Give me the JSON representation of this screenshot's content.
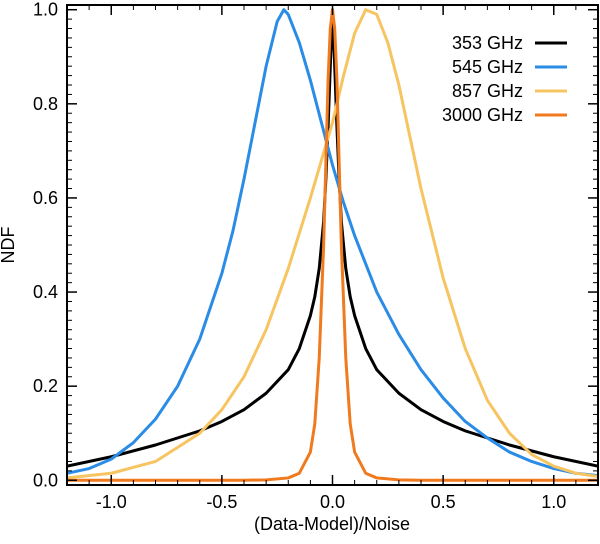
{
  "chart_data": {
    "type": "line",
    "title": "",
    "xlabel": "(Data-Model)/Noise",
    "ylabel": "NDF",
    "xlim": [
      -1.2,
      1.2
    ],
    "ylim": [
      -0.01,
      1.01
    ],
    "grid": false,
    "legend_position": "top-right",
    "x_ticks": [
      -1.0,
      -0.5,
      0.0,
      0.5,
      1.0
    ],
    "x_tick_labels": [
      "-1.0",
      "-0.5",
      "0.0",
      "0.5",
      "1.0"
    ],
    "y_ticks": [
      0.0,
      0.2,
      0.4,
      0.6,
      0.8,
      1.0
    ],
    "y_tick_labels": [
      "0.0",
      "0.2",
      "0.4",
      "0.6",
      "0.8",
      "1.0"
    ],
    "series": [
      {
        "name": "353 GHz",
        "color": "#000000",
        "x": [
          -1.2,
          -1.0,
          -0.8,
          -0.6,
          -0.5,
          -0.4,
          -0.3,
          -0.2,
          -0.15,
          -0.1,
          -0.08,
          -0.06,
          -0.04,
          -0.03,
          -0.02,
          -0.01,
          0.0,
          0.01,
          0.02,
          0.03,
          0.04,
          0.06,
          0.08,
          0.1,
          0.15,
          0.2,
          0.3,
          0.4,
          0.5,
          0.6,
          0.8,
          1.0,
          1.2
        ],
        "y": [
          0.03,
          0.05,
          0.075,
          0.105,
          0.125,
          0.15,
          0.185,
          0.235,
          0.28,
          0.35,
          0.39,
          0.45,
          0.55,
          0.64,
          0.75,
          0.88,
          1.0,
          0.88,
          0.75,
          0.64,
          0.55,
          0.45,
          0.39,
          0.35,
          0.28,
          0.235,
          0.185,
          0.15,
          0.125,
          0.105,
          0.075,
          0.05,
          0.03
        ]
      },
      {
        "name": "545 GHz",
        "color": "#2b8ce6",
        "x": [
          -1.2,
          -1.1,
          -1.0,
          -0.9,
          -0.8,
          -0.7,
          -0.6,
          -0.5,
          -0.45,
          -0.4,
          -0.35,
          -0.3,
          -0.25,
          -0.22,
          -0.2,
          -0.15,
          -0.1,
          -0.05,
          0.0,
          0.05,
          0.1,
          0.2,
          0.3,
          0.4,
          0.5,
          0.6,
          0.7,
          0.8,
          0.9,
          1.0,
          1.1,
          1.2
        ],
        "y": [
          0.015,
          0.025,
          0.045,
          0.08,
          0.13,
          0.2,
          0.3,
          0.44,
          0.53,
          0.64,
          0.76,
          0.88,
          0.975,
          1.0,
          0.99,
          0.93,
          0.85,
          0.76,
          0.67,
          0.59,
          0.52,
          0.4,
          0.31,
          0.235,
          0.175,
          0.125,
          0.09,
          0.06,
          0.04,
          0.025,
          0.015,
          0.01
        ]
      },
      {
        "name": "857 GHz",
        "color": "#f7c462",
        "x": [
          -1.2,
          -1.0,
          -0.8,
          -0.6,
          -0.5,
          -0.4,
          -0.3,
          -0.2,
          -0.1,
          0.0,
          0.05,
          0.1,
          0.15,
          0.2,
          0.25,
          0.3,
          0.35,
          0.4,
          0.5,
          0.6,
          0.7,
          0.8,
          0.9,
          1.0,
          1.1,
          1.2
        ],
        "y": [
          0.005,
          0.015,
          0.04,
          0.1,
          0.15,
          0.22,
          0.32,
          0.45,
          0.6,
          0.76,
          0.86,
          0.95,
          1.0,
          0.99,
          0.93,
          0.84,
          0.73,
          0.62,
          0.43,
          0.28,
          0.17,
          0.1,
          0.055,
          0.03,
          0.015,
          0.008
        ]
      },
      {
        "name": "3000 GHz",
        "color": "#f07a1e",
        "x": [
          -1.2,
          -0.4,
          -0.3,
          -0.2,
          -0.15,
          -0.1,
          -0.08,
          -0.06,
          -0.04,
          -0.02,
          -0.01,
          0.0,
          0.01,
          0.02,
          0.04,
          0.06,
          0.08,
          0.1,
          0.15,
          0.2,
          0.3,
          0.4,
          1.2
        ],
        "y": [
          0.0,
          0.0,
          0.001,
          0.005,
          0.015,
          0.06,
          0.12,
          0.26,
          0.5,
          0.85,
          0.96,
          1.0,
          0.96,
          0.85,
          0.5,
          0.26,
          0.12,
          0.06,
          0.015,
          0.005,
          0.001,
          0.0,
          0.0
        ]
      }
    ]
  }
}
